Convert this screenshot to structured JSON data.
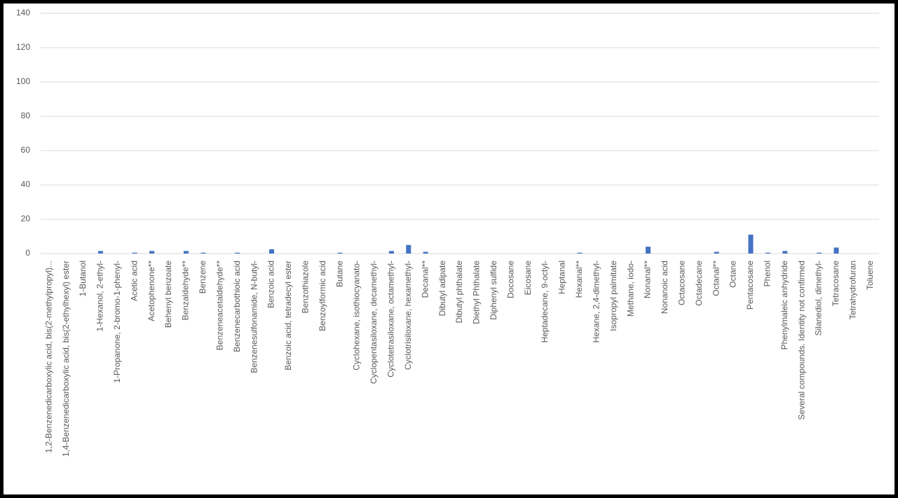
{
  "chart_data": {
    "type": "bar",
    "categories": [
      "1,2-Benzenedicarboxylic acid, bis(2-methylpropyl)...",
      "1,4-Benzenedicarboxylic acid, bis(2-ethylhexyl) ester",
      "1-Butanol",
      "1-Hexanol, 2-ethyl-",
      "1-Propanone, 2-bromo-1-phenyl-",
      "Acetic acid",
      "Acetophenone**",
      "Behenyl benzoate",
      "Benzaldehyde**",
      "Benzene",
      "Benzeneacetaldehyde**",
      "Benzenecarbothioic acid",
      "Benzenesulfonamide, N-butyl-",
      "Benzoic acid",
      "Benzoic acid, tetradecyl ester",
      "Benzothiazole",
      "Benzoylformic acid",
      "Butane",
      "Cyclohexane, isothiocyanato-",
      "Cyclopentasiloxane, decamethyl-",
      "Cyclotetrasiloxane, octamethyl-",
      "Cyclotrisiloxane, hexamethyl-",
      "Decanal**",
      "Dibutyl adipate",
      "Dibutyl phthalate",
      "Diethyl Phthalate",
      "Diphenyl sulfide",
      "Docosane",
      "Eicosane",
      "Heptadecane, 9-octyl-",
      "Heptanal",
      "Hexanal**",
      "Hexane, 2,4-dimethyl-",
      "Isopropyl palmitate",
      "Methane, iodo-",
      "Nonanal**",
      "Nonanoic acid",
      "Octacosane",
      "Octadecane",
      "Octanal**",
      "Octane",
      "Pentacosane",
      "Phenol",
      "Phenylmaleic anhydride",
      "Several compounds. Identity not confirmed",
      "Silanediol, dimethyl-",
      "Tetracosane",
      "Tetrahydrofuran",
      "Toluene"
    ],
    "values": [
      0,
      0,
      0,
      1.5,
      0,
      0.5,
      1.5,
      0,
      1.5,
      0.5,
      0,
      0.5,
      0,
      2.5,
      0,
      0,
      0,
      0.5,
      0,
      0,
      1.5,
      5,
      1,
      0,
      0,
      0,
      0,
      0,
      0,
      0,
      0,
      0.5,
      0,
      0,
      0,
      4,
      0,
      0,
      0,
      1,
      0,
      11,
      0.5,
      1.5,
      0,
      0.5,
      3.5,
      0,
      0
    ],
    "color": "#4472c4",
    "ylim": [
      0,
      140
    ],
    "yticks": [
      0,
      20,
      40,
      60,
      80,
      100,
      120,
      140
    ],
    "grid": true
  }
}
